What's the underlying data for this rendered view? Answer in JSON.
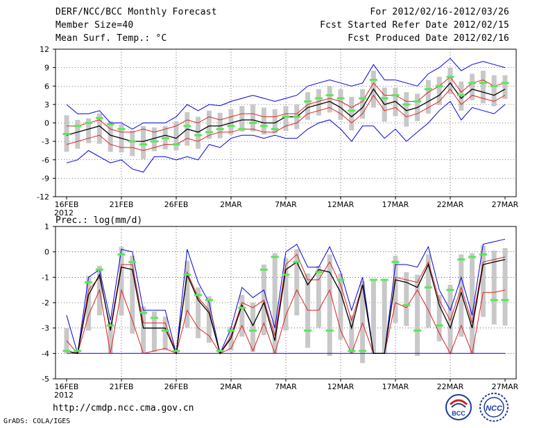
{
  "header": {
    "title": "DERF/NCC/BCC Monthly Forecast",
    "member_size": "Member Size=40",
    "variable": "Mean Surf. Temp.: °C",
    "period": "For 2012/02/16-2012/03/26",
    "start_date": "Fcst Started Refer Date 2012/02/15",
    "produced_date": "Fcst Produced Date 2012/02/16"
  },
  "footer": {
    "url": "http://cmdp.ncc.cma.gov.cn",
    "credit": "GrADS: COLA/IGES",
    "logo_bcc": "BCC",
    "logo_ncc": "NCC"
  },
  "colors": {
    "box": "#c8c8c8",
    "median": "#58e858",
    "mean": "#000000",
    "inner": "#e02020",
    "outer": "#0000e0",
    "grid": "#000000"
  },
  "chart_data": [
    {
      "type": "line",
      "title": "Mean Surf. Temp.: °C",
      "ylim": [
        -12,
        12
      ],
      "yticks": [
        -12,
        -9,
        -6,
        -3,
        0,
        3,
        6,
        9,
        12
      ],
      "xlim": [
        0,
        40
      ],
      "xticks": [
        {
          "i": 0,
          "label": "16FEB",
          "sub": "2012"
        },
        {
          "i": 5,
          "label": "21FEB"
        },
        {
          "i": 10,
          "label": "26FEB"
        },
        {
          "i": 15,
          "label": "2MAR"
        },
        {
          "i": 20,
          "label": "7MAR"
        },
        {
          "i": 25,
          "label": "12MAR"
        },
        {
          "i": 30,
          "label": "17MAR"
        },
        {
          "i": 35,
          "label": "22MAR"
        },
        {
          "i": 40,
          "label": "27MAR"
        }
      ],
      "series": [
        {
          "name": "max",
          "values": [
            3,
            1.5,
            1.5,
            2,
            0,
            0,
            -1,
            0,
            0,
            0,
            1,
            3,
            2,
            3,
            2.8,
            3.5,
            4,
            4.5,
            4,
            3.5,
            4,
            4.5,
            6,
            6.5,
            7,
            6.5,
            6,
            6.5,
            9.5,
            7,
            7,
            6.5,
            6,
            8,
            9,
            10.5,
            8.5,
            9.5,
            10,
            9.5,
            9
          ]
        },
        {
          "name": "upper",
          "values": [
            -0.5,
            -0.5,
            0,
            0.5,
            -1,
            -1.5,
            -1.5,
            -1,
            -1.5,
            -1,
            -0.5,
            0.5,
            0,
            1,
            0.5,
            1,
            1.5,
            1.5,
            1,
            1,
            1.5,
            1.5,
            3,
            3.5,
            4,
            3.5,
            2.5,
            3.5,
            6.5,
            4.5,
            4.5,
            3.5,
            3.5,
            5,
            6,
            7.5,
            5,
            6.5,
            7,
            6,
            6.5
          ]
        },
        {
          "name": "mean",
          "values": [
            -2,
            -1.5,
            -1,
            -0.5,
            -2,
            -2.5,
            -3,
            -3,
            -2.5,
            -2,
            -2.5,
            -1,
            -1.5,
            -0.5,
            -0.5,
            0,
            0.5,
            0.5,
            0,
            0,
            1,
            1,
            2.5,
            3,
            3.5,
            2.5,
            1,
            2.5,
            5.5,
            3,
            3.5,
            2,
            2.5,
            3.5,
            4.5,
            6.5,
            4,
            5.5,
            5,
            4.5,
            5.5
          ]
        },
        {
          "name": "lower",
          "values": [
            -3.5,
            -3,
            -2.5,
            -2,
            -3.5,
            -4,
            -4,
            -4.5,
            -4,
            -3.5,
            -3.5,
            -2.5,
            -3,
            -2,
            -1.5,
            -1.5,
            -1,
            -1,
            -1.5,
            -1.5,
            -0.5,
            0,
            1.5,
            2,
            2.5,
            1.5,
            0,
            1.5,
            4.5,
            2,
            2.5,
            1,
            1.5,
            2.5,
            3.5,
            5.5,
            3,
            4.5,
            4,
            3.5,
            4.5
          ]
        },
        {
          "name": "min",
          "values": [
            -6.5,
            -6,
            -4.5,
            -5.5,
            -6.5,
            -6,
            -7.5,
            -8,
            -5.5,
            -5.5,
            -6,
            -5.5,
            -6,
            -3.5,
            -4,
            -2.5,
            -2,
            -2,
            -2.5,
            -2,
            -2.5,
            -2.5,
            -1,
            0,
            0.5,
            -1,
            -3,
            -0.5,
            -0.5,
            -2.5,
            -1,
            -3,
            -1.5,
            0,
            2,
            3.5,
            0.5,
            2.5,
            2,
            1.5,
            3
          ]
        },
        {
          "name": "median",
          "values": [
            -1.8,
            -0.5,
            0,
            0.8,
            -0.2,
            -1,
            -3,
            -3.5,
            -3,
            -2.5,
            -3.5,
            -0.5,
            -2,
            -1.5,
            -1,
            -0.5,
            -1,
            0,
            -0.5,
            -1,
            1,
            1,
            3.5,
            4,
            4.5,
            4,
            2,
            4,
            7,
            4,
            4.5,
            3,
            3.5,
            5.5,
            6,
            7.5,
            4.5,
            6.5,
            6.5,
            6,
            6.5
          ]
        }
      ]
    },
    {
      "type": "line",
      "title": "Prec.: log(mm/d)",
      "ylim": [
        -5,
        1
      ],
      "yticks": [
        -5,
        -4,
        -3,
        -2,
        -1,
        0,
        1
      ],
      "xlim": [
        0,
        40
      ],
      "xticks": [
        {
          "i": 0,
          "label": "16FEB",
          "sub": "2012"
        },
        {
          "i": 5,
          "label": "21FEB"
        },
        {
          "i": 10,
          "label": "26FEB"
        },
        {
          "i": 15,
          "label": "2MAR"
        },
        {
          "i": 20,
          "label": "7MAR"
        },
        {
          "i": 25,
          "label": "12MAR"
        },
        {
          "i": 30,
          "label": "17MAR"
        },
        {
          "i": 35,
          "label": "22MAR"
        },
        {
          "i": 40,
          "label": "27MAR"
        }
      ],
      "series": [
        {
          "name": "max",
          "values": [
            -2.5,
            -4,
            -1,
            -0.7,
            -2.7,
            0.1,
            0,
            -2.3,
            -2.3,
            -2.3,
            -4,
            0.1,
            -1.2,
            -2,
            -4,
            -3,
            -1.4,
            -1.8,
            -1.5,
            -3,
            0,
            0.3,
            -0.6,
            -0.6,
            0.2,
            -0.8,
            -2.3,
            -1,
            -4,
            -4,
            -0.5,
            -0.5,
            -0.6,
            0.2,
            -1.5,
            -2.3,
            -1,
            -2.5,
            0.3,
            0.4,
            0.5
          ]
        },
        {
          "name": "upper",
          "values": [
            -3.5,
            -4,
            -1.5,
            -1,
            -3,
            -0.5,
            -0.5,
            -2.8,
            -2.8,
            -2.8,
            -4,
            -0.8,
            -1.8,
            -2.3,
            -4,
            -3.3,
            -2,
            -2.2,
            -1.9,
            -3.3,
            -0.5,
            -0.1,
            -1.1,
            -1.1,
            -0.4,
            -1.3,
            -2.7,
            -1.3,
            -4,
            -4,
            -1,
            -1.1,
            -1.2,
            -0.4,
            -1.9,
            -2.7,
            -1.4,
            -2.8,
            -0.4,
            -0.3,
            -0.2
          ]
        },
        {
          "name": "mean",
          "values": [
            -3.9,
            -4,
            -1.7,
            -0.9,
            -3.1,
            -0.6,
            -0.7,
            -3,
            -3,
            -3,
            -4,
            -0.9,
            -1.9,
            -2.4,
            -4,
            -3.4,
            -2.1,
            -2.9,
            -2,
            -3.5,
            -0.7,
            -0.4,
            -1.3,
            -0.7,
            -0.8,
            -1.6,
            -3,
            -1.3,
            -4,
            -4,
            -1.1,
            -1.2,
            -1.4,
            -0.5,
            -2.1,
            -3,
            -1.6,
            -3,
            -0.5,
            -0.4,
            -0.3
          ]
        },
        {
          "name": "lower",
          "values": [
            -4,
            -4,
            -2.5,
            -1.5,
            -4,
            -1.5,
            -2.7,
            -4,
            -3.9,
            -3.8,
            -4,
            -2.3,
            -3,
            -3.3,
            -4,
            -3.8,
            -2.9,
            -3.9,
            -2.8,
            -4,
            -2.5,
            -1.5,
            -2.3,
            -2.3,
            -1.5,
            -3.1,
            -4,
            -2.8,
            -4,
            -4,
            -2,
            -2.2,
            -1.5,
            -2.3,
            -3.2,
            -4,
            -2.9,
            -4,
            -1.6,
            -1.6,
            -1.5
          ]
        },
        {
          "name": "min",
          "values": [
            -4,
            -4,
            -4,
            -4,
            -4,
            -4,
            -4,
            -4,
            -4,
            -4,
            -4,
            -4,
            -4,
            -4,
            -4,
            -4,
            -4,
            -4,
            -4,
            -4,
            -4,
            -4,
            -4,
            -4,
            -4,
            -4,
            -4,
            -4,
            -4,
            -4,
            -4,
            -4,
            -4,
            -4,
            -4,
            -4,
            -4,
            -4,
            -4,
            -4,
            -4
          ]
        },
        {
          "name": "median",
          "values": [
            -3.9,
            -3.9,
            -1.2,
            -0.7,
            -2.9,
            -0.1,
            -0.4,
            -2.4,
            -2.6,
            -3.1,
            -3.9,
            -0.9,
            -1.7,
            -1.9,
            -3.9,
            -3.1,
            -2.2,
            -3.1,
            -0.7,
            -0.2,
            -0.9,
            -0.4,
            -3.1,
            -0.8,
            -3.1,
            -1.1,
            -3.9,
            -3.9,
            -1.1,
            -1.1,
            -0.4,
            -2.1,
            -3.1,
            -1.4,
            -2.9,
            -1.5,
            -0.3,
            -0.2,
            -0.1,
            -1.9,
            -1.9
          ]
        }
      ]
    }
  ]
}
